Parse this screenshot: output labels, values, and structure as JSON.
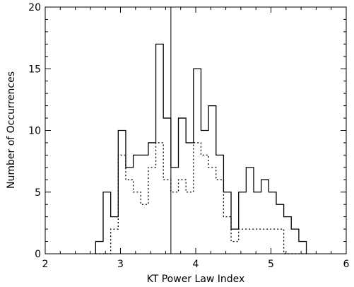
{
  "chart_data": {
    "type": "histogram",
    "title": "",
    "xlabel": "KT Power Law Index",
    "ylabel": "Number of Occurrences",
    "xlim": [
      2,
      6
    ],
    "ylim": [
      0,
      20
    ],
    "xticks": [
      2,
      3,
      4,
      5,
      6
    ],
    "yticks": [
      0,
      5,
      10,
      15,
      20
    ],
    "grid": false,
    "vertical_line_x": 3.67,
    "series": [
      {
        "style": "solid",
        "bin_edges": [
          2.67,
          2.77,
          2.87,
          2.97,
          3.07,
          3.17,
          3.27,
          3.37,
          3.47,
          3.57,
          3.67,
          3.77,
          3.87,
          3.97,
          4.07,
          4.17,
          4.27,
          4.37,
          4.47,
          4.57,
          4.67,
          4.77,
          4.87,
          4.97,
          5.07,
          5.17,
          5.27,
          5.37,
          5.47
        ],
        "counts": [
          1,
          5,
          3,
          10,
          7,
          8,
          8,
          9,
          17,
          11,
          7,
          11,
          9,
          15,
          10,
          12,
          8,
          5,
          2,
          5,
          7,
          5,
          6,
          5,
          4,
          3,
          2,
          1
        ]
      },
      {
        "style": "dotted",
        "bin_edges": [
          2.67,
          2.77,
          2.87,
          2.97,
          3.07,
          3.17,
          3.27,
          3.37,
          3.47,
          3.57,
          3.67,
          3.77,
          3.87,
          3.97,
          4.07,
          4.17,
          4.27,
          4.37,
          4.47,
          4.57,
          4.67,
          4.77,
          4.87,
          4.97,
          5.07,
          5.17,
          5.27,
          5.37,
          5.47
        ],
        "counts": [
          0,
          0,
          2,
          8,
          6,
          5,
          4,
          7,
          9,
          6,
          5,
          6,
          5,
          9,
          8,
          7,
          6,
          3,
          1,
          2,
          2,
          2,
          2,
          2,
          2,
          0,
          0,
          0
        ]
      }
    ]
  }
}
